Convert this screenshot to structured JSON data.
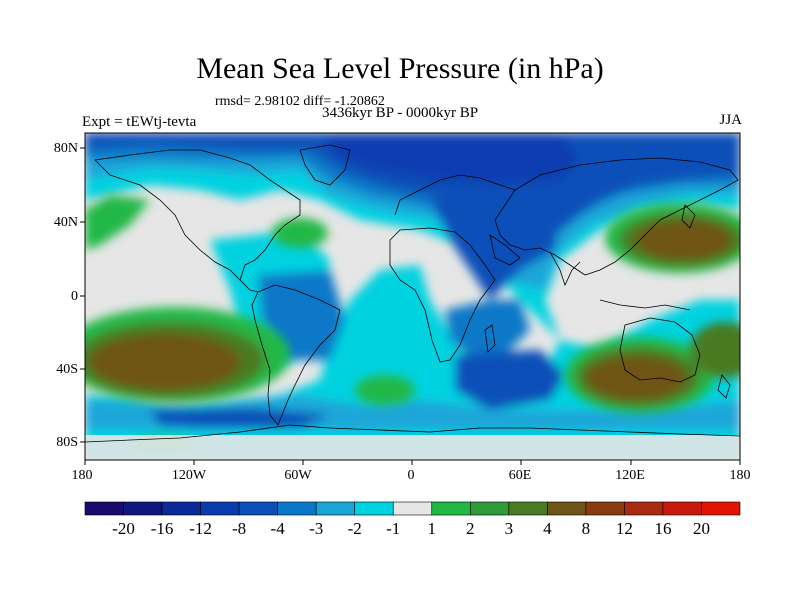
{
  "title": "Mean Sea Level Pressure (in hPa)",
  "stats": "rmsd= 2.98102 diff= -1.20862",
  "period": "3436kyr BP - 0000kyr BP",
  "experiment": "Expt = tEWtj-tevta",
  "season": "JJA",
  "lat_labels": [
    "80N",
    "40N",
    "0",
    "40S",
    "80S"
  ],
  "lon_labels": [
    "180",
    "120W",
    "60W",
    "0",
    "60E",
    "120E",
    "180"
  ],
  "colorbar": {
    "levels": [
      "-20",
      "-16",
      "-12",
      "-8",
      "-4",
      "-3",
      "-2",
      "-1",
      "1",
      "2",
      "3",
      "4",
      "8",
      "12",
      "16",
      "20"
    ],
    "colors": [
      "#1a0a6b",
      "#10157f",
      "#0a2a9a",
      "#0a3cb0",
      "#0a50b8",
      "#0a78c8",
      "#1aa6d8",
      "#00d2e0",
      "#e6e6e6",
      "#22b846",
      "#2f9a3a",
      "#4a7a22",
      "#6e5418",
      "#8a3a12",
      "#a82a10",
      "#c81a0c",
      "#e01400"
    ]
  },
  "colors": {
    "ocean_base": "#e6e6e6",
    "coast": "#000000"
  }
}
